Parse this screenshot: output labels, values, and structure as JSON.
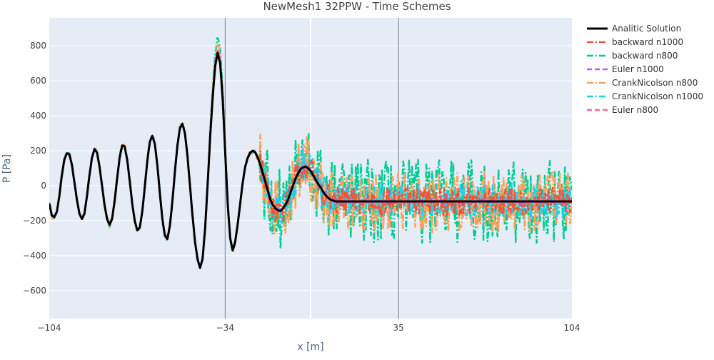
{
  "chart_data": {
    "type": "line",
    "title": "NewMesh1 32PPW - Time Schemes",
    "xlabel": "x [m]",
    "ylabel": "P [Pa]",
    "xlim": [
      -104,
      104
    ],
    "ylim": [
      -760,
      960
    ],
    "x_ticks": [
      -104,
      -34,
      35,
      104
    ],
    "x_tick_labels": [
      "−104",
      "−34",
      "35",
      "104"
    ],
    "y_ticks": [
      -600,
      -400,
      -200,
      0,
      200,
      400,
      600,
      800
    ],
    "y_tick_labels": [
      "−600",
      "−400",
      "−200",
      "0",
      "200",
      "400",
      "600",
      "800"
    ],
    "vertical_lines": [
      -34,
      0,
      35
    ],
    "grid": true,
    "plot_background": "#e5ecf6",
    "legend_position": "top-right-outside",
    "series": [
      {
        "name": "Analitic Solution",
        "color": "#000000",
        "dash": "solid"
      },
      {
        "name": "backward n1000",
        "color": "#ef553b",
        "dash": "dashdot"
      },
      {
        "name": "backward n800",
        "color": "#00cc96",
        "dash": "dashdot"
      },
      {
        "name": "Euler n1000",
        "color": "#ab63fa",
        "dash": "dash"
      },
      {
        "name": "CrankNicolson n800",
        "color": "#ffa15a",
        "dash": "dashdot"
      },
      {
        "name": "CrankNicolson n1000",
        "color": "#19d3f3",
        "dash": "dashdot"
      },
      {
        "name": "Euler n800",
        "color": "#ff6692",
        "dash": "dash"
      }
    ],
    "analytic_points": [
      [
        -104,
        -100
      ],
      [
        -103,
        -170
      ],
      [
        -102,
        -180
      ],
      [
        -101,
        -150
      ],
      [
        -100,
        -60
      ],
      [
        -99,
        60
      ],
      [
        -98,
        150
      ],
      [
        -97,
        185
      ],
      [
        -96,
        180
      ],
      [
        -95,
        120
      ],
      [
        -94,
        20
      ],
      [
        -93,
        -80
      ],
      [
        -92,
        -160
      ],
      [
        -91,
        -190
      ],
      [
        -90,
        -160
      ],
      [
        -89,
        -60
      ],
      [
        -88,
        60
      ],
      [
        -87,
        160
      ],
      [
        -86,
        210
      ],
      [
        -85,
        190
      ],
      [
        -84,
        110
      ],
      [
        -83,
        0
      ],
      [
        -82,
        -110
      ],
      [
        -81,
        -190
      ],
      [
        -80,
        -225
      ],
      [
        -79,
        -190
      ],
      [
        -78,
        -90
      ],
      [
        -77,
        40
      ],
      [
        -76,
        160
      ],
      [
        -75,
        230
      ],
      [
        -74,
        225
      ],
      [
        -73,
        150
      ],
      [
        -72,
        30
      ],
      [
        -71,
        -100
      ],
      [
        -70,
        -200
      ],
      [
        -69,
        -255
      ],
      [
        -68,
        -240
      ],
      [
        -67,
        -150
      ],
      [
        -66,
        -10
      ],
      [
        -65,
        140
      ],
      [
        -64,
        250
      ],
      [
        -63,
        285
      ],
      [
        -62,
        240
      ],
      [
        -61,
        120
      ],
      [
        -60,
        -40
      ],
      [
        -59,
        -190
      ],
      [
        -58,
        -285
      ],
      [
        -57,
        -305
      ],
      [
        -56,
        -230
      ],
      [
        -55,
        -90
      ],
      [
        -54,
        80
      ],
      [
        -53,
        230
      ],
      [
        -52,
        330
      ],
      [
        -51,
        355
      ],
      [
        -50,
        300
      ],
      [
        -49,
        170
      ],
      [
        -48,
        0
      ],
      [
        -47,
        -170
      ],
      [
        -46,
        -320
      ],
      [
        -45,
        -420
      ],
      [
        -44,
        -470
      ],
      [
        -43,
        -420
      ],
      [
        -42,
        -250
      ],
      [
        -41,
        0
      ],
      [
        -40,
        270
      ],
      [
        -39,
        500
      ],
      [
        -38,
        680
      ],
      [
        -37,
        760
      ],
      [
        -36,
        700
      ],
      [
        -35,
        500
      ],
      [
        -34,
        200
      ],
      [
        -33,
        -100
      ],
      [
        -32,
        -300
      ],
      [
        -31,
        -370
      ],
      [
        -30,
        -320
      ],
      [
        -29,
        -220
      ],
      [
        -28,
        -100
      ],
      [
        -27,
        20
      ],
      [
        -26,
        110
      ],
      [
        -25,
        160
      ],
      [
        -24,
        190
      ],
      [
        -23,
        200
      ],
      [
        -22,
        190
      ],
      [
        -21,
        160
      ],
      [
        -20,
        120
      ],
      [
        -19,
        70
      ],
      [
        -18,
        20
      ],
      [
        -17,
        -30
      ],
      [
        -16,
        -80
      ],
      [
        -15,
        -110
      ],
      [
        -14,
        -130
      ],
      [
        -13,
        -140
      ],
      [
        -12,
        -145
      ],
      [
        -11,
        -130
      ],
      [
        -10,
        -110
      ],
      [
        -9,
        -80
      ],
      [
        -8,
        -40
      ],
      [
        -7,
        0
      ],
      [
        -6,
        40
      ],
      [
        -5,
        70
      ],
      [
        -4,
        95
      ],
      [
        -3,
        105
      ],
      [
        -2,
        110
      ],
      [
        -1,
        100
      ],
      [
        0,
        85
      ],
      [
        1,
        60
      ],
      [
        2,
        35
      ],
      [
        3,
        10
      ],
      [
        4,
        -10
      ],
      [
        5,
        -35
      ],
      [
        6,
        -55
      ],
      [
        7,
        -70
      ],
      [
        8,
        -80
      ],
      [
        9,
        -85
      ],
      [
        10,
        -90
      ]
    ]
  }
}
